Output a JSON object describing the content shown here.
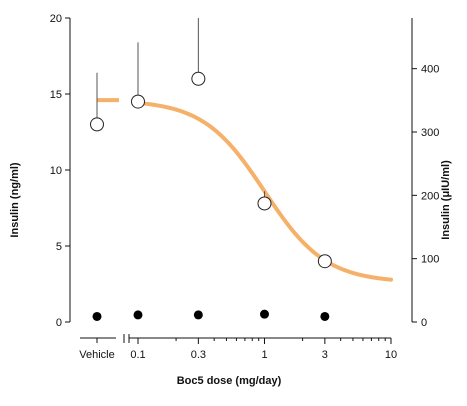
{
  "chart_data": {
    "type": "scatter",
    "title": "",
    "xlabel": "Boc5 dose (mg/day)",
    "ylabel": "Insulin (ng/ml)",
    "y2label": "Insulin (μIU/ml)",
    "x_scale": "log",
    "xlim": [
      0.05,
      10
    ],
    "ylim": [
      0,
      20
    ],
    "y2lim": [
      0,
      480
    ],
    "vehicle_label": "Vehicle",
    "x_ticks": [
      {
        "value": 0.1,
        "label": "0.1"
      },
      {
        "value": 0.3,
        "label": "0.3"
      },
      {
        "value": 1,
        "label": "1"
      },
      {
        "value": 3,
        "label": "3"
      },
      {
        "value": 10,
        "label": "10"
      }
    ],
    "y_ticks": [
      {
        "value": 0,
        "label": "0"
      },
      {
        "value": 5,
        "label": "5"
      },
      {
        "value": 10,
        "label": "10"
      },
      {
        "value": 15,
        "label": "15"
      },
      {
        "value": 20,
        "label": "20"
      }
    ],
    "y2_ticks": [
      {
        "value": 0,
        "label": "0"
      },
      {
        "value": 100,
        "label": "100"
      },
      {
        "value": 200,
        "label": "200"
      },
      {
        "value": 300,
        "label": "300"
      },
      {
        "value": 400,
        "label": "400"
      }
    ],
    "series": [
      {
        "marker": "open-circle",
        "points": [
          {
            "x": "Vehicle",
            "y": 13.0,
            "err": 3.4
          },
          {
            "x": 0.1,
            "y": 14.5,
            "err": 3.9
          },
          {
            "x": 0.3,
            "y": 16.0,
            "err": 4.0
          },
          {
            "x": 1,
            "y": 7.8,
            "err": 0.8
          },
          {
            "x": 3,
            "y": 4.0,
            "err": 0
          }
        ]
      },
      {
        "marker": "filled-circle",
        "points": [
          {
            "x": "Vehicle",
            "y": 0.3
          },
          {
            "x": 0.1,
            "y": 0.4
          },
          {
            "x": 0.3,
            "y": 0.4
          },
          {
            "x": 1,
            "y": 0.45
          },
          {
            "x": 3,
            "y": 0.3
          }
        ]
      }
    ],
    "fit_curve": {
      "color": "#f5b06a",
      "top": 14.6,
      "bottom": 2.6,
      "ec50": 1.0,
      "hill": 1.8,
      "vehicle_level": 14.6
    },
    "colors": {
      "axis": "#111111",
      "open_marker_fill": "#ffffff",
      "filled_marker": "#000000"
    }
  }
}
